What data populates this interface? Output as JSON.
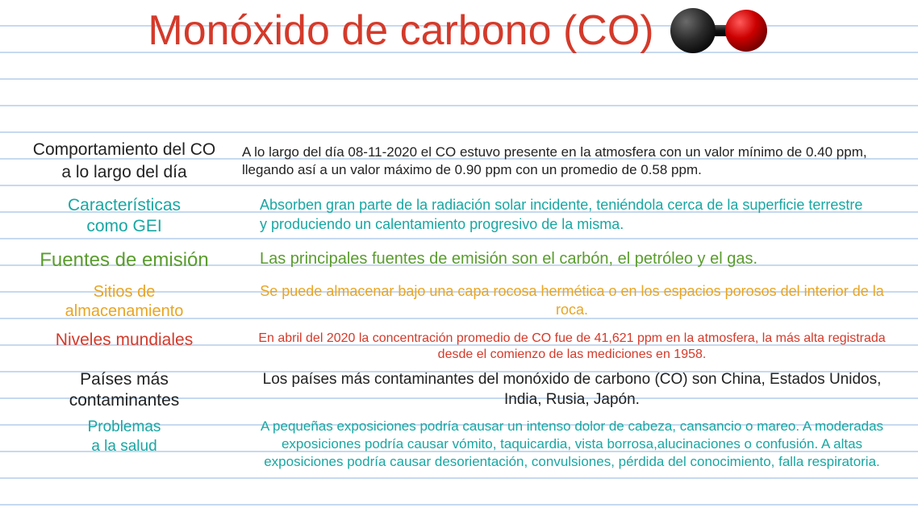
{
  "title": "Monóxido de carbono (CO)",
  "molecule": {
    "atom1_fill": "#2b2b2b",
    "atom1_hi": "#6a6a6a",
    "atom2_fill": "#cc0000",
    "atom2_hi": "#ff4d4d",
    "bond_fill": "#1a1a1a",
    "atom_r": 28,
    "atom2_r": 26,
    "bond_w": 36,
    "bond_h": 14
  },
  "colors": {
    "title": "#d43a2a",
    "black": "#222222",
    "teal": "#18a7a3",
    "green": "#5a9c2e",
    "orange": "#e8a524",
    "red": "#d43a2a",
    "line": "#c6d9f0",
    "bg": "#ffffff"
  },
  "rows": [
    {
      "label": "Comportamiento del CO\na lo largo del día",
      "body": "A lo largo del día 08-11-2020 el CO estuvo presente en la atmosfera con un valor mínimo de 0.40 ppm, llegando así a un valor máximo de 0.90 ppm con un promedio de 0.58 ppm."
    },
    {
      "label": "Características\ncomo GEI",
      "body": "Absorben  gran parte de la radiación solar incidente, teniéndola cerca de la superficie terrestre y produciendo un calentamiento progresivo de la misma."
    },
    {
      "label": "Fuentes de emisión",
      "body": "Las principales fuentes de emisión son el carbón, el petróleo y el gas."
    },
    {
      "label": "Sitios de\nalmacenamiento",
      "body": "Se puede almacenar bajo una capa rocosa hermética o en los espacios porosos del interior de la roca."
    },
    {
      "label": "Niveles mundiales",
      "body": "En abril del 2020 la concentración promedio de CO fue de 41,621 ppm en la atmosfera, la más alta registrada desde el comienzo de las mediciones en 1958."
    },
    {
      "label": "Países más\ncontaminantes",
      "body": "Los países más contaminantes del monóxido de carbono (CO) son China, Estados Unidos, India, Rusia, Japón."
    },
    {
      "label": "Problemas\na la salud",
      "body": "A pequeñas exposiciones podría causar un intenso dolor de cabeza, cansancio o mareo. A moderadas exposiciones podría causar vómito, taquicardia, vista borrosa,alucinaciones o confusión. A altas exposiciones podría causar desorientación, convulsiones, pérdida del conocimiento, falla respiratoria."
    }
  ]
}
